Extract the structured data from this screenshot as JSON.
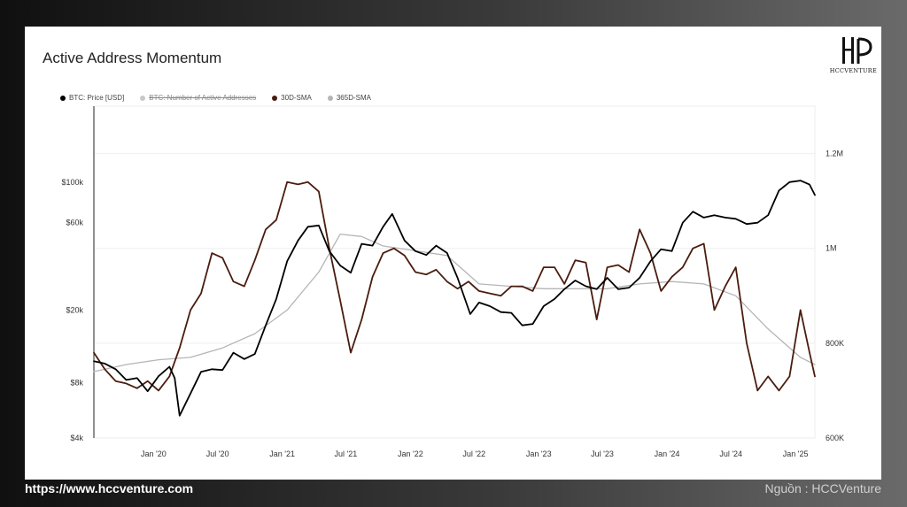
{
  "title": "Active Address Momentum",
  "logo": {
    "name": "HCCVENTURE"
  },
  "legend": [
    {
      "label": "BTC: Price [USD]",
      "color": "#000000",
      "struck": false
    },
    {
      "label": "BTC: Number of Active Addresses",
      "color": "#c8c8c8",
      "struck": true
    },
    {
      "label": "30D-SMA",
      "color": "#4a1c0e",
      "struck": false
    },
    {
      "label": "365D-SMA",
      "color": "#b5b5b5",
      "struck": false
    }
  ],
  "footer": {
    "url": "https://www.hccventure.com",
    "source": "Nguồn : HCCVenture"
  },
  "chart_data": {
    "type": "line",
    "title": "Active Address Momentum",
    "x_tick_labels": [
      "Jan '20",
      "Jul '20",
      "Jan '21",
      "Jul '21",
      "Jan '22",
      "Jul '22",
      "Jan '23",
      "Jul '23",
      "Jan '24",
      "Jul '24",
      "Jan '25"
    ],
    "x_tick_dates": [
      "2020-01-01",
      "2020-07-01",
      "2021-01-01",
      "2021-07-01",
      "2022-01-01",
      "2022-07-01",
      "2023-01-01",
      "2023-07-01",
      "2024-01-01",
      "2024-07-01",
      "2025-01-01"
    ],
    "xlim": [
      "2019-07-15",
      "2025-02-25"
    ],
    "y_left": {
      "scale": "log",
      "ticks": [
        4000,
        8000,
        20000,
        60000,
        100000
      ],
      "tick_labels": [
        "$4k",
        "$8k",
        "$20k",
        "$60k",
        "$100k"
      ],
      "ylim": [
        4000,
        260000
      ]
    },
    "y_right": {
      "scale": "linear",
      "ticks": [
        600000,
        800000,
        1000000,
        1200000
      ],
      "tick_labels": [
        "600K",
        "800K",
        "1M",
        "1.2M"
      ],
      "ylim": [
        600000,
        1300000
      ]
    },
    "grid": true,
    "legend_position": "top-left",
    "series": [
      {
        "name": "BTC: Price [USD]",
        "axis": "left",
        "color": "#000000",
        "x": [
          "2019-07-15",
          "2019-08-15",
          "2019-09-15",
          "2019-10-15",
          "2019-11-15",
          "2019-12-15",
          "2020-01-15",
          "2020-02-15",
          "2020-03-01",
          "2020-03-15",
          "2020-04-15",
          "2020-05-15",
          "2020-06-15",
          "2020-07-15",
          "2020-08-15",
          "2020-09-15",
          "2020-10-15",
          "2020-11-15",
          "2020-12-15",
          "2021-01-15",
          "2021-02-15",
          "2021-03-15",
          "2021-04-15",
          "2021-05-15",
          "2021-06-15",
          "2021-07-15",
          "2021-08-15",
          "2021-09-15",
          "2021-10-15",
          "2021-11-10",
          "2021-12-15",
          "2022-01-15",
          "2022-02-15",
          "2022-03-15",
          "2022-04-15",
          "2022-05-15",
          "2022-06-20",
          "2022-07-15",
          "2022-08-15",
          "2022-09-15",
          "2022-10-15",
          "2022-11-15",
          "2022-12-15",
          "2023-01-15",
          "2023-02-15",
          "2023-03-15",
          "2023-04-15",
          "2023-05-15",
          "2023-06-15",
          "2023-07-15",
          "2023-08-15",
          "2023-09-15",
          "2023-10-15",
          "2023-11-15",
          "2023-12-15",
          "2024-01-15",
          "2024-02-15",
          "2024-03-15",
          "2024-04-15",
          "2024-05-15",
          "2024-06-15",
          "2024-07-15",
          "2024-08-15",
          "2024-09-15",
          "2024-10-15",
          "2024-11-15",
          "2024-12-15",
          "2025-01-15",
          "2025-02-10",
          "2025-02-25"
        ],
        "values": [
          10500,
          10200,
          9500,
          8300,
          8500,
          7200,
          8700,
          9800,
          8500,
          5300,
          7000,
          9200,
          9500,
          9400,
          11700,
          10800,
          11500,
          16500,
          23000,
          37000,
          48000,
          57000,
          58000,
          42000,
          35000,
          32000,
          46000,
          45000,
          57000,
          67000,
          48000,
          42000,
          40000,
          45000,
          41000,
          30000,
          19000,
          22000,
          21000,
          19500,
          19300,
          16500,
          16800,
          21000,
          23000,
          26000,
          29000,
          27000,
          26000,
          30000,
          26000,
          26500,
          30000,
          37000,
          43000,
          42000,
          60000,
          69000,
          64000,
          66000,
          64000,
          63000,
          59000,
          60000,
          66000,
          90000,
          100000,
          102000,
          97000,
          85000
        ]
      },
      {
        "name": "30D-SMA",
        "axis": "right",
        "color": "#4a1c0e",
        "x": [
          "2019-07-15",
          "2019-08-15",
          "2019-09-15",
          "2019-10-15",
          "2019-11-15",
          "2019-12-15",
          "2020-01-15",
          "2020-02-15",
          "2020-03-15",
          "2020-04-15",
          "2020-05-15",
          "2020-06-15",
          "2020-07-15",
          "2020-08-15",
          "2020-09-15",
          "2020-10-15",
          "2020-11-15",
          "2020-12-15",
          "2021-01-15",
          "2021-02-15",
          "2021-03-15",
          "2021-04-15",
          "2021-05-15",
          "2021-06-15",
          "2021-07-15",
          "2021-08-15",
          "2021-09-15",
          "2021-10-15",
          "2021-11-15",
          "2021-12-15",
          "2022-01-15",
          "2022-02-15",
          "2022-03-15",
          "2022-04-15",
          "2022-05-15",
          "2022-06-15",
          "2022-07-15",
          "2022-08-15",
          "2022-09-15",
          "2022-10-15",
          "2022-11-15",
          "2022-12-15",
          "2023-01-15",
          "2023-02-15",
          "2023-03-15",
          "2023-04-15",
          "2023-05-15",
          "2023-06-15",
          "2023-07-15",
          "2023-08-15",
          "2023-09-15",
          "2023-10-15",
          "2023-11-15",
          "2023-12-15",
          "2024-01-15",
          "2024-02-15",
          "2024-03-15",
          "2024-04-15",
          "2024-05-15",
          "2024-06-15",
          "2024-07-15",
          "2024-08-15",
          "2024-09-15",
          "2024-10-15",
          "2024-11-15",
          "2024-12-15",
          "2025-01-15",
          "2025-02-10",
          "2025-02-25"
        ],
        "values": [
          780000,
          745000,
          720000,
          715000,
          705000,
          720000,
          700000,
          730000,
          790000,
          870000,
          905000,
          990000,
          980000,
          930000,
          920000,
          975000,
          1040000,
          1060000,
          1140000,
          1135000,
          1140000,
          1120000,
          1000000,
          890000,
          780000,
          850000,
          940000,
          990000,
          1000000,
          985000,
          950000,
          945000,
          955000,
          930000,
          915000,
          930000,
          910000,
          905000,
          900000,
          920000,
          920000,
          910000,
          960000,
          960000,
          925000,
          975000,
          970000,
          850000,
          960000,
          965000,
          950000,
          1040000,
          990000,
          910000,
          940000,
          960000,
          1000000,
          1010000,
          870000,
          920000,
          960000,
          800000,
          700000,
          730000,
          700000,
          730000,
          870000,
          780000,
          730000
        ]
      },
      {
        "name": "365D-SMA",
        "axis": "right",
        "color": "#b5b5b5",
        "x": [
          "2019-07-15",
          "2019-10-15",
          "2020-01-15",
          "2020-04-15",
          "2020-07-15",
          "2020-10-15",
          "2021-01-15",
          "2021-04-15",
          "2021-06-15",
          "2021-08-15",
          "2021-10-15",
          "2022-01-15",
          "2022-04-15",
          "2022-07-15",
          "2022-10-15",
          "2023-01-15",
          "2023-04-15",
          "2023-07-15",
          "2023-10-15",
          "2024-01-15",
          "2024-04-15",
          "2024-07-15",
          "2024-10-15",
          "2025-01-15",
          "2025-02-25"
        ],
        "values": [
          740000,
          755000,
          765000,
          770000,
          790000,
          820000,
          870000,
          950000,
          1030000,
          1025000,
          1005000,
          995000,
          985000,
          925000,
          920000,
          915000,
          915000,
          915000,
          925000,
          930000,
          925000,
          900000,
          830000,
          770000,
          755000
        ]
      }
    ]
  }
}
